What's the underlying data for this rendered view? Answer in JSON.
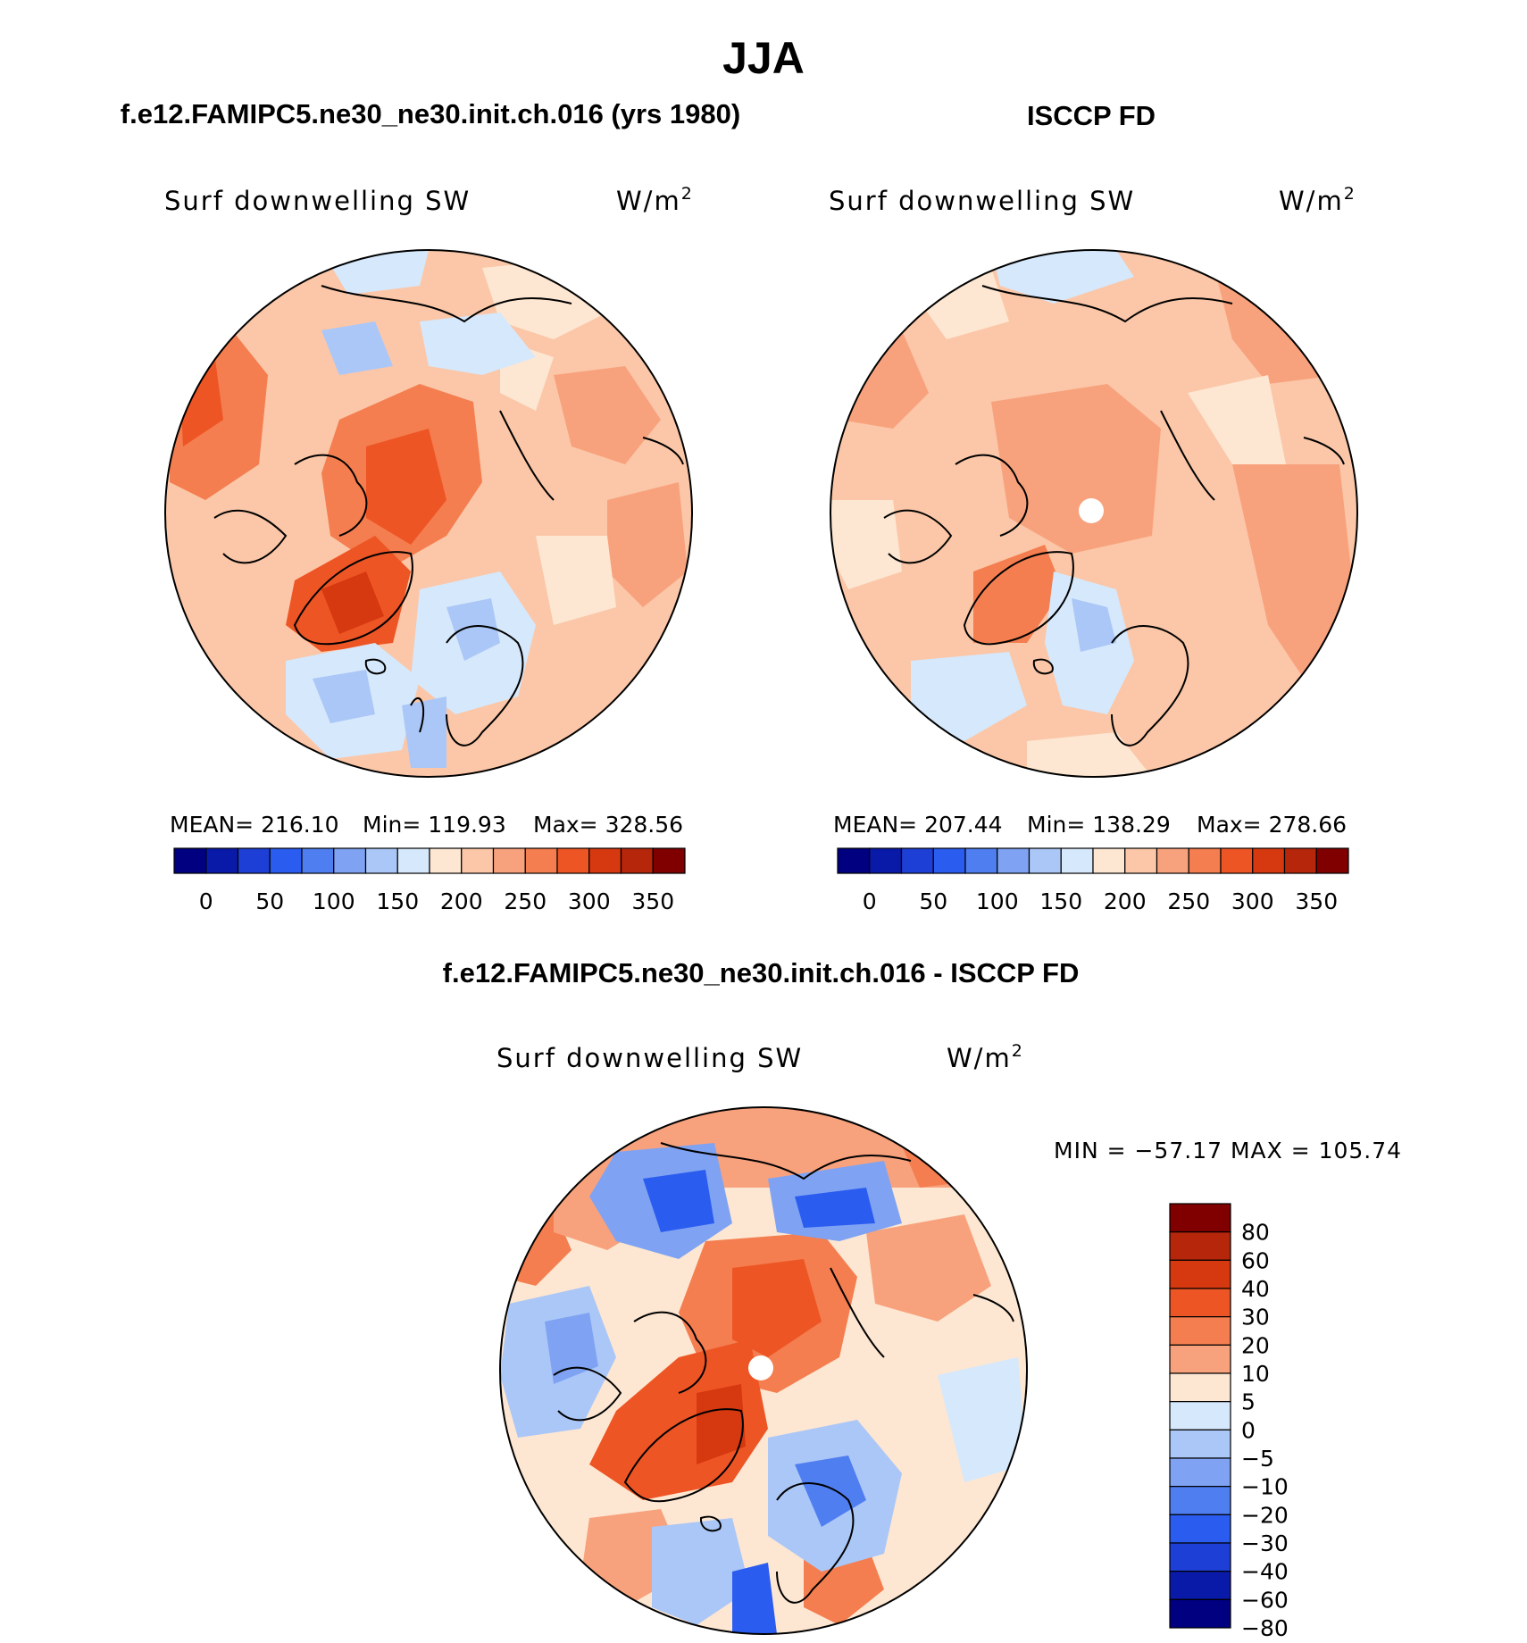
{
  "title": "JJA",
  "panels": [
    {
      "heading": "f.e12.FAMIPC5.ne30_ne30.init.ch.016 (yrs 1980)",
      "variable": "Surf downwelling SW",
      "units": "W/m",
      "units_exp": "2",
      "stats": {
        "mean_label": "MEAN=",
        "mean": "216.10",
        "min_label": "Min=",
        "min": "119.93",
        "max_label": "Max=",
        "max": "328.56"
      },
      "has_pole_hole": false
    },
    {
      "heading": "ISCCP FD",
      "variable": "Surf downwelling SW",
      "units": "W/m",
      "units_exp": "2",
      "stats": {
        "mean_label": "MEAN=",
        "mean": "207.44",
        "min_label": "Min=",
        "min": "138.29",
        "max_label": "Max=",
        "max": "278.66"
      },
      "has_pole_hole": true
    }
  ],
  "abs_colorbar": {
    "colors": [
      "#000080",
      "#0a1aa8",
      "#1e3fd6",
      "#2b5cf0",
      "#4f7ef0",
      "#7fa3f2",
      "#abc7f7",
      "#d6e8fb",
      "#fde7d2",
      "#fbc7a8",
      "#f8a27d",
      "#f47e4f",
      "#ee5525",
      "#d6380f",
      "#b5260b",
      "#800000"
    ],
    "labels": [
      "0",
      "50",
      "100",
      "150",
      "200",
      "250",
      "300",
      "350"
    ]
  },
  "diff_panel": {
    "heading": "f.e12.FAMIPC5.ne30_ne30.init.ch.016 - ISCCP FD",
    "variable": "Surf downwelling SW",
    "units": "W/m",
    "units_exp": "2",
    "minmax_text": "MIN = −57.17 MAX = 105.74",
    "colors": [
      "#800000",
      "#b5260b",
      "#d6380f",
      "#ee5525",
      "#f47e4f",
      "#f8a27d",
      "#fde7d2",
      "#d6e8fb",
      "#abc7f7",
      "#7fa3f2",
      "#4f7ef0",
      "#2b5cf0",
      "#1e3fd6",
      "#0a1aa8",
      "#000080"
    ],
    "labels": [
      "80",
      "60",
      "40",
      "30",
      "20",
      "10",
      "5",
      "0",
      "−5",
      "−10",
      "−20",
      "−30",
      "−40",
      "−60",
      "−80"
    ]
  }
}
